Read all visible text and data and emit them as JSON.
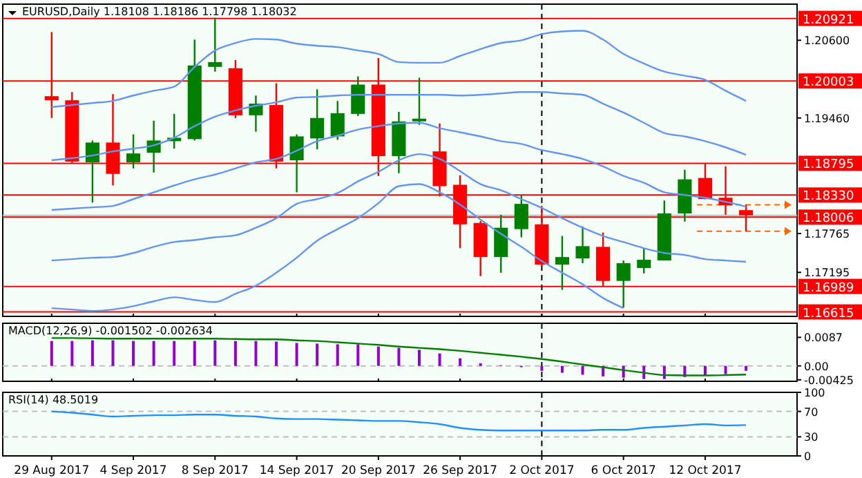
{
  "chart_data": [
    {
      "type": "candlestick",
      "title": "EURUSD,Daily  1.18108 1.18186 1.17798 1.18032",
      "categories": [
        "29 Aug 2017",
        null,
        null,
        null,
        "4 Sep 2017",
        null,
        null,
        null,
        "8 Sep 2017",
        null,
        null,
        null,
        "14 Sep 2017",
        null,
        null,
        null,
        "20 Sep 2017",
        null,
        null,
        null,
        "26 Sep 2017",
        null,
        null,
        null,
        "2 Oct 2017",
        null,
        null,
        null,
        "6 Oct 2017",
        null,
        null,
        null,
        "12 Oct 2017",
        null,
        null
      ],
      "ohlc": [
        [
          1.1978,
          1.2072,
          1.1946,
          1.1972
        ],
        [
          1.1972,
          1.1984,
          1.188,
          1.1882
        ],
        [
          1.1881,
          1.1913,
          1.1822,
          1.191
        ],
        [
          1.191,
          1.1981,
          1.1847,
          1.1864
        ],
        [
          1.1881,
          1.1922,
          1.1872,
          1.1894
        ],
        [
          1.1895,
          1.1942,
          1.1866,
          1.1913
        ],
        [
          1.1912,
          1.1952,
          1.1901,
          1.1917
        ],
        [
          1.1915,
          1.2061,
          1.1913,
          1.2023
        ],
        [
          1.2021,
          1.2093,
          1.2014,
          1.2028
        ],
        [
          1.2019,
          1.2031,
          1.1946,
          1.195
        ],
        [
          1.195,
          1.1979,
          1.1926,
          1.1967
        ],
        [
          1.1965,
          1.1997,
          1.1872,
          1.1882
        ],
        [
          1.1884,
          1.1922,
          1.1837,
          1.1919
        ],
        [
          1.1916,
          1.1988,
          1.19,
          1.1946
        ],
        [
          1.1919,
          1.1971,
          1.1914,
          1.1953
        ],
        [
          1.1952,
          1.2007,
          1.1949,
          1.1995
        ],
        [
          1.1995,
          1.2034,
          1.1861,
          1.189
        ],
        [
          1.189,
          1.1955,
          1.1865,
          1.1941
        ],
        [
          1.1941,
          1.2005,
          1.1936,
          1.1945
        ],
        [
          1.1897,
          1.1938,
          1.1831,
          1.1846
        ],
        [
          1.1848,
          1.1862,
          1.1755,
          1.179
        ],
        [
          1.1792,
          1.1795,
          1.1714,
          1.1742
        ],
        [
          1.1742,
          1.1804,
          1.1719,
          1.1785
        ],
        [
          1.1783,
          1.1833,
          1.1771,
          1.182
        ],
        [
          1.179,
          1.1817,
          1.1728,
          1.1731
        ],
        [
          1.1731,
          1.1773,
          1.1694,
          1.1742
        ],
        [
          1.174,
          1.1787,
          1.1733,
          1.1758
        ],
        [
          1.1757,
          1.1778,
          1.1699,
          1.1707
        ],
        [
          1.1707,
          1.1737,
          1.1668,
          1.1733
        ],
        [
          1.1726,
          1.1755,
          1.1718,
          1.1738
        ],
        [
          1.1737,
          1.1825,
          1.1737,
          1.1806
        ],
        [
          1.1806,
          1.187,
          1.1794,
          1.1856
        ],
        [
          1.1858,
          1.1879,
          1.1827,
          1.1827
        ],
        [
          1.1829,
          1.1875,
          1.1804,
          1.1818
        ],
        [
          1.18108,
          1.18186,
          1.17798,
          1.18032
        ]
      ],
      "series": [
        {
          "type": "line",
          "color": "#6495ed",
          "values": [
            1.1962,
            1.1965,
            1.1968,
            1.1971,
            1.1979,
            1.1986,
            1.1992,
            1.2021,
            1.2045,
            1.2056,
            1.2062,
            1.2061,
            1.2055,
            1.2052,
            1.205,
            1.2045,
            1.204,
            1.2028,
            1.2027,
            1.2027,
            1.2037,
            1.2047,
            1.2056,
            1.206,
            1.2069,
            1.2073,
            1.2074,
            1.2061,
            1.204,
            1.2026,
            1.2014,
            1.2008,
            1.2002,
            1.1986,
            1.1971
          ]
        },
        {
          "type": "line",
          "color": "#6495ed",
          "values": [
            1.1884,
            1.1887,
            1.1891,
            1.1897,
            1.1901,
            1.1906,
            1.1917,
            1.1934,
            1.1948,
            1.1957,
            1.1964,
            1.1969,
            1.1976,
            1.1977,
            1.1979,
            1.198,
            1.198,
            1.198,
            1.198,
            1.198,
            1.1979,
            1.198,
            1.1982,
            1.1984,
            1.1984,
            1.1982,
            1.198,
            1.1967,
            1.1954,
            1.1939,
            1.1924,
            1.1919,
            1.1912,
            1.1903,
            1.1892
          ]
        },
        {
          "type": "line",
          "color": "#6495ed",
          "values": [
            1.1811,
            1.1813,
            1.1815,
            1.1817,
            1.1827,
            1.1837,
            1.1847,
            1.1856,
            1.1863,
            1.1872,
            1.1881,
            1.1886,
            1.1898,
            1.1912,
            1.192,
            1.1929,
            1.1934,
            1.1938,
            1.1939,
            1.1931,
            1.1925,
            1.1919,
            1.1912,
            1.1908,
            1.1899,
            1.1893,
            1.1886,
            1.1875,
            1.1861,
            1.1851,
            1.1837,
            1.1833,
            1.1829,
            1.1823,
            1.1816
          ]
        },
        {
          "type": "line",
          "color": "#6495ed",
          "values": [
            1.1737,
            1.1739,
            1.1741,
            1.1742,
            1.1748,
            1.1757,
            1.1764,
            1.1767,
            1.1771,
            1.1774,
            1.1785,
            1.1799,
            1.182,
            1.1827,
            1.1836,
            1.1853,
            1.1867,
            1.1884,
            1.1893,
            1.1886,
            1.1868,
            1.1849,
            1.184,
            1.1827,
            1.1814,
            1.1799,
            1.1785,
            1.1773,
            1.1764,
            1.1755,
            1.1748,
            1.1745,
            1.1739,
            1.1737,
            1.1735
          ]
        },
        {
          "type": "line",
          "color": "#6495ed",
          "values": [
            1.1667,
            1.1665,
            1.1663,
            1.1665,
            1.167,
            1.1677,
            1.1683,
            1.1679,
            1.1676,
            1.1688,
            1.17,
            1.1719,
            1.1741,
            1.1766,
            1.1783,
            1.1799,
            1.1821,
            1.1846,
            1.1849,
            1.1837,
            1.1819,
            1.1797,
            1.1776,
            1.1757,
            1.1736,
            1.1719,
            1.1702,
            1.1682,
            1.1667,
            null,
            null,
            null,
            null,
            null,
            null
          ]
        }
      ],
      "ylim": [
        1.1655,
        1.2113
      ],
      "yticks": [
        {
          "value": 1.206,
          "label": "1.20600"
        },
        {
          "value": 1.1946,
          "label": "1.19460"
        },
        {
          "value": 1.17765,
          "label": "1.17765"
        },
        {
          "value": 1.17195,
          "label": "1.17195"
        }
      ],
      "tick_labels": "y",
      "ref_lines": [
        {
          "axis": "y",
          "value": 1.20921,
          "label": "1.20921",
          "color": "#ff0000"
        },
        {
          "axis": "y",
          "value": 1.20003,
          "label": "1.20003",
          "color": "#ff0000"
        },
        {
          "axis": "y",
          "value": 1.18795,
          "label": "1.18795",
          "color": "#ff0000"
        },
        {
          "axis": "y",
          "value": 1.1833,
          "label": "1.18330",
          "color": "#ff0000"
        },
        {
          "axis": "y",
          "value": 1.18006,
          "label": "1.18006",
          "color": "#ff0000"
        },
        {
          "axis": "y",
          "value": 1.16989,
          "label": "1.16989",
          "color": "#ff0000"
        },
        {
          "axis": "y",
          "value": 1.16615,
          "label": "1.16615",
          "color": "#ff0000"
        },
        {
          "axis": "y",
          "value": 1.18032,
          "label": null,
          "color": "#c0c0c0"
        },
        {
          "axis": "y",
          "value": 1.18186,
          "label": null,
          "color": "#ff6600",
          "line_style": "dashed"
        },
        {
          "axis": "y",
          "value": 1.17798,
          "label": null,
          "color": "#ff6600",
          "line_style": "dashed"
        },
        {
          "axis": "x",
          "value": "2 Oct 2017",
          "label": null,
          "color": "#000000",
          "line_style": "dashed"
        }
      ]
    },
    {
      "type": "bar",
      "title": "MACD(12,26,9) -0.001502 -0.002634",
      "categories": [
        "29 Aug 2017",
        null,
        null,
        null,
        "4 Sep 2017",
        null,
        null,
        null,
        "8 Sep 2017",
        null,
        null,
        null,
        "14 Sep 2017",
        null,
        null,
        null,
        "20 Sep 2017",
        null,
        null,
        null,
        "26 Sep 2017",
        null,
        null,
        null,
        "2 Oct 2017",
        null,
        null,
        null,
        "6 Oct 2017",
        null,
        null,
        null,
        "12 Oct 2017",
        null,
        null
      ],
      "series": [
        {
          "type": "bar",
          "color": "#9400d3",
          "values": [
            0.0076,
            0.0076,
            0.0078,
            0.0078,
            0.0076,
            0.0076,
            0.0076,
            0.0076,
            0.0078,
            0.0076,
            0.0076,
            0.0074,
            0.007,
            0.0068,
            0.0066,
            0.0066,
            0.0059,
            0.0055,
            0.0049,
            0.0038,
            0.0023,
            0.0008,
            0.0002,
            -0.0004,
            -0.0015,
            -0.0021,
            -0.0027,
            -0.0032,
            -0.0036,
            -0.004,
            -0.004,
            -0.0034,
            -0.003,
            -0.0025,
            -0.001502
          ]
        },
        {
          "type": "line",
          "color": "#008000",
          "values": [
            0.0085,
            0.0085,
            0.0084,
            0.0083,
            0.0083,
            0.0083,
            0.0083,
            0.0083,
            0.0083,
            0.0082,
            0.0081,
            0.0081,
            0.0078,
            0.0076,
            0.0072,
            0.0068,
            0.0064,
            0.0059,
            0.0055,
            0.0051,
            0.0046,
            0.004,
            0.0034,
            0.0028,
            0.0021,
            0.0013,
            0.0004,
            -0.0004,
            -0.0013,
            -0.0021,
            -0.0028,
            -0.0029,
            -0.0029,
            -0.0028,
            -0.002634
          ]
        }
      ],
      "ylim": [
        -0.0047,
        0.013
      ],
      "yticks": [
        {
          "value": 0.0087,
          "label": "0.0087"
        },
        {
          "value": 0,
          "label": "0.00"
        },
        {
          "value": -0.00425,
          "label": "-0.00425"
        }
      ],
      "tick_labels": "y",
      "ref_lines": [
        {
          "axis": "y",
          "value": 0,
          "label": null,
          "color": "#c0c0c0",
          "line_style": "dashed"
        },
        {
          "axis": "x",
          "value": "2 Oct 2017",
          "label": null,
          "color": "#000000",
          "line_style": "dashed"
        }
      ]
    },
    {
      "type": "line",
      "title": "RSI(14) 48.5019",
      "categories": [
        "29 Aug 2017",
        null,
        null,
        null,
        "4 Sep 2017",
        null,
        null,
        null,
        "8 Sep 2017",
        null,
        null,
        null,
        "14 Sep 2017",
        null,
        null,
        null,
        "20 Sep 2017",
        null,
        null,
        null,
        "26 Sep 2017",
        null,
        null,
        null,
        "2 Oct 2017",
        null,
        null,
        null,
        "6 Oct 2017",
        null,
        null,
        null,
        "12 Oct 2017",
        null,
        null
      ],
      "values": [
        70,
        68,
        65,
        62,
        63,
        64,
        64,
        65,
        65,
        63,
        62,
        59,
        58,
        58,
        57,
        56,
        55,
        55,
        53,
        50,
        44,
        41,
        40,
        40,
        40,
        40,
        40,
        41,
        41,
        44,
        46,
        48,
        50,
        48,
        48.5019
      ],
      "color": "#1e90ff",
      "ylim": [
        0,
        100
      ],
      "yticks": [
        100,
        70,
        30,
        0
      ],
      "ref_lines": [
        {
          "axis": "y",
          "value": 70,
          "label": null,
          "color": "#c0c0c0",
          "line_style": "dashed"
        },
        {
          "axis": "y",
          "value": 30,
          "label": null,
          "color": "#c0c0c0",
          "line_style": "dashed"
        },
        {
          "axis": "x",
          "value": "2 Oct 2017",
          "label": null,
          "color": "#000000",
          "line_style": "dashed"
        }
      ]
    }
  ]
}
